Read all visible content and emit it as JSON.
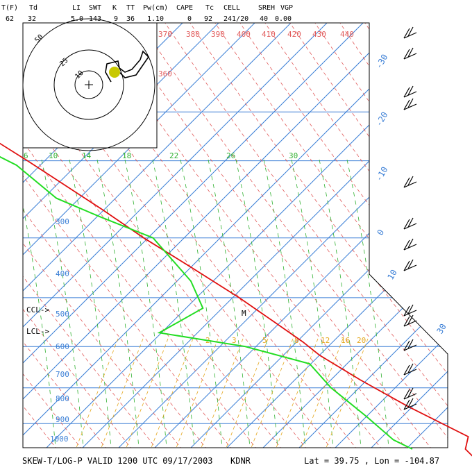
{
  "header": {
    "labels": [
      "T(F)",
      "Td",
      "LI",
      "SWT",
      "K",
      "TT",
      "Pw(cm)",
      "CAPE",
      "Tc",
      "CELL",
      "SREH",
      "VGP"
    ],
    "values": [
      "62",
      "32",
      "5.0",
      "143",
      "9",
      "36",
      "1.10",
      "0",
      "92",
      "241/20",
      "40",
      "0.00"
    ]
  },
  "footer": {
    "left": "SKEW-T/LOG-P VALID 1200 UTC 09/17/2003",
    "station": "KDNR",
    "lat": "Lat =     39.75 , Lon =  -104.87"
  },
  "markers": {
    "ccl": "CCL->",
    "lcl": "LCL->",
    "m": "M"
  },
  "colors": {
    "isobar": "#3b7fd6",
    "isotherm": "#3b7fd6",
    "dry_adiabat": "#e15a5a",
    "moist_adiabat": "#2fb02f",
    "mixing_ratio": "#e5a820",
    "temperature": "#e01010",
    "dewpoint": "#22dd22",
    "hodo_dot": "#c8c800"
  },
  "chart_data": {
    "type": "skew-t log-p",
    "pressure_labels": [
      "300",
      "400",
      "500",
      "600",
      "700",
      "800",
      "900",
      "1000"
    ],
    "temperature_labels": [
      "-30",
      "-20",
      "-10",
      "0",
      "10",
      "30"
    ],
    "theta_labels": [
      "370",
      "380",
      "390",
      "400",
      "410",
      "420",
      "430",
      "440",
      "360"
    ],
    "theta_e_labels": [
      "6",
      "10",
      "14",
      "18",
      "22",
      "26",
      "30"
    ],
    "mixing_ratio_labels": [
      "2",
      "3",
      "5",
      "8",
      "12",
      "16",
      "20"
    ],
    "hodograph_rings": [
      "50",
      "25",
      "10"
    ],
    "temperature_profile": [
      {
        "p": 1000,
        "t": 17.0
      },
      {
        "p": 880,
        "t": 17.0
      },
      {
        "p": 840,
        "t": 22.0
      },
      {
        "p": 750,
        "t": 12.5
      },
      {
        "p": 680,
        "t": 6.0
      },
      {
        "p": 620,
        "t": 1.0
      },
      {
        "p": 590,
        "t": 0.0
      },
      {
        "p": 550,
        "t": -2.5
      },
      {
        "p": 500,
        "t": -6.0
      },
      {
        "p": 450,
        "t": -11.0
      },
      {
        "p": 400,
        "t": -17.0
      },
      {
        "p": 360,
        "t": -21.0
      },
      {
        "p": 300,
        "t": -29.0
      },
      {
        "p": 250,
        "t": -38.0
      },
      {
        "p": 220,
        "t": -45.0
      },
      {
        "p": 200,
        "t": -48.0
      },
      {
        "p": 180,
        "t": -47.0
      },
      {
        "p": 150,
        "t": -40.0
      },
      {
        "p": 120,
        "t": -47.0
      }
    ],
    "dewpoint_profile": [
      {
        "p": 880,
        "t": 0.0
      },
      {
        "p": 850,
        "t": -3.0
      },
      {
        "p": 780,
        "t": -4.0
      },
      {
        "p": 700,
        "t": -6.0
      },
      {
        "p": 640,
        "t": -5.0
      },
      {
        "p": 600,
        "t": -20.0
      },
      {
        "p": 570,
        "t": -43.0
      },
      {
        "p": 520,
        "t": -21.0
      },
      {
        "p": 470,
        "t": -16.0
      },
      {
        "p": 400,
        "t": -14.0
      },
      {
        "p": 370,
        "t": -24.0
      },
      {
        "p": 345,
        "t": -32.0
      },
      {
        "p": 305,
        "t": -34.0
      },
      {
        "p": 280,
        "t": -41.0
      },
      {
        "p": 250,
        "t": -47.0
      }
    ]
  }
}
